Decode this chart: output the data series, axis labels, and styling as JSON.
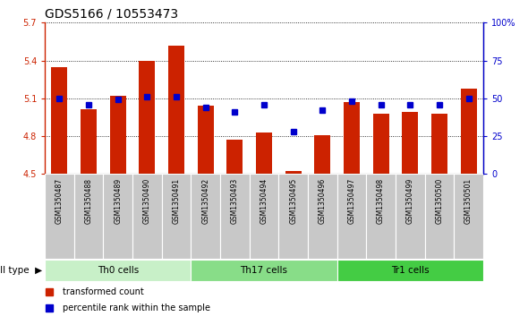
{
  "title": "GDS5166 / 10553473",
  "samples": [
    "GSM1350487",
    "GSM1350488",
    "GSM1350489",
    "GSM1350490",
    "GSM1350491",
    "GSM1350492",
    "GSM1350493",
    "GSM1350494",
    "GSM1350495",
    "GSM1350496",
    "GSM1350497",
    "GSM1350498",
    "GSM1350499",
    "GSM1350500",
    "GSM1350501"
  ],
  "red_values": [
    5.35,
    5.01,
    5.12,
    5.4,
    5.52,
    5.04,
    4.77,
    4.83,
    4.52,
    4.81,
    5.07,
    4.98,
    4.99,
    4.98,
    5.18
  ],
  "blue_values": [
    50,
    46,
    49,
    51,
    51,
    44,
    41,
    46,
    28,
    42,
    48,
    46,
    46,
    46,
    50
  ],
  "y_min": 4.5,
  "y_max": 5.7,
  "y_ticks_left": [
    4.5,
    4.8,
    5.1,
    5.4,
    5.7
  ],
  "y_ticks_right": [
    0,
    25,
    50,
    75,
    100
  ],
  "y_labels_right": [
    "0",
    "25",
    "50",
    "75",
    "100%"
  ],
  "bar_color": "#cc2200",
  "dot_color": "#0000cc",
  "bg_color": "#ffffff",
  "tick_bg_color": "#c8c8c8",
  "cell_groups": [
    {
      "label": "Th0 cells",
      "start": 0,
      "end": 4,
      "color": "#c8f0c8"
    },
    {
      "label": "Th17 cells",
      "start": 5,
      "end": 9,
      "color": "#88dd88"
    },
    {
      "label": "Tr1 cells",
      "start": 10,
      "end": 14,
      "color": "#44cc44"
    }
  ],
  "cell_type_label": "cell type",
  "legend_red": "transformed count",
  "legend_blue": "percentile rank within the sample",
  "title_fontsize": 10,
  "tick_fontsize": 7,
  "label_fontsize": 7.5,
  "bar_width": 0.55
}
